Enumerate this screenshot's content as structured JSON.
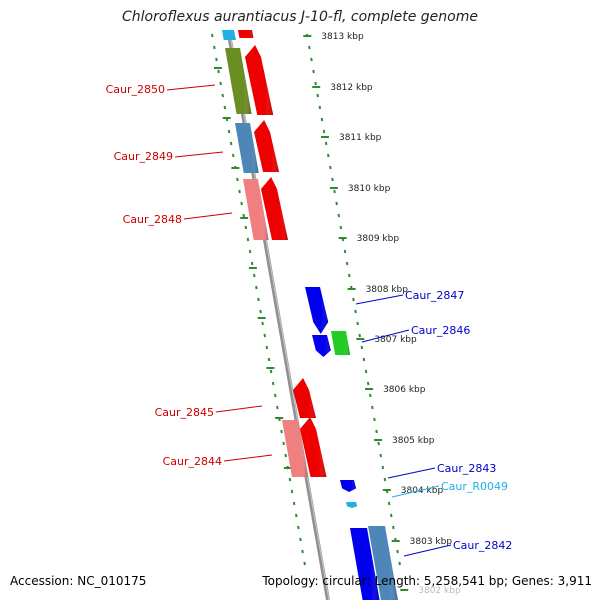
{
  "title": "Chloroflexus aurantiacus J-10-fl, complete genome",
  "footer": {
    "accession": "Accession: NC_010175",
    "summary": "Topology: circular; Length: 5,258,541 bp; Genes: 3,911"
  },
  "colors": {
    "label_red": "#cc0000",
    "label_blue": "#0000cc",
    "label_cyan": "#1fb0e6",
    "tick_green": "#2e8b2e",
    "backbone": "#909090"
  },
  "scale_ticks": [
    {
      "label": "3813 kbp",
      "pos": 3813
    },
    {
      "label": "3812 kbp",
      "pos": 3812
    },
    {
      "label": "3811 kbp",
      "pos": 3811
    },
    {
      "label": "3810 kbp",
      "pos": 3810
    },
    {
      "label": "3809 kbp",
      "pos": 3809
    },
    {
      "label": "3808 kbp",
      "pos": 3808
    },
    {
      "label": "3807 kbp",
      "pos": 3807
    },
    {
      "label": "3806 kbp",
      "pos": 3806
    },
    {
      "label": "3805 kbp",
      "pos": 3805
    },
    {
      "label": "3804 kbp",
      "pos": 3804
    },
    {
      "label": "3803 kbp",
      "pos": 3803
    },
    {
      "label": "3802 kbp",
      "pos": 3802
    }
  ],
  "genes": [
    {
      "id": "Caur_2850",
      "label": "Caur_2850",
      "strand": "left",
      "color": "#6b8e23"
    },
    {
      "id": "Caur_2849",
      "label": "Caur_2849",
      "strand": "left",
      "color": "#4f86b8"
    },
    {
      "id": "Caur_2848",
      "label": "Caur_2848",
      "strand": "left",
      "color": "#f08080"
    },
    {
      "id": "Caur_2847",
      "label": "Caur_2847",
      "strand": "right",
      "color": "#0000ee"
    },
    {
      "id": "Caur_2846",
      "label": "Caur_2846",
      "strand": "right",
      "color": "#22cc22"
    },
    {
      "id": "Caur_2845",
      "label": "Caur_2845",
      "strand": "left",
      "color": "#ee0000"
    },
    {
      "id": "Caur_2844",
      "label": "Caur_2844",
      "strand": "left",
      "color": "#f08080"
    },
    {
      "id": "Caur_2843",
      "label": "Caur_2843",
      "strand": "right",
      "color": "#0000ee"
    },
    {
      "id": "Caur_R0049",
      "label": "Caur_R0049",
      "strand": "right",
      "color": "#1fb0e6"
    },
    {
      "id": "Caur_2842",
      "label": "Caur_2842",
      "strand": "right",
      "color": "#0000ee"
    }
  ]
}
